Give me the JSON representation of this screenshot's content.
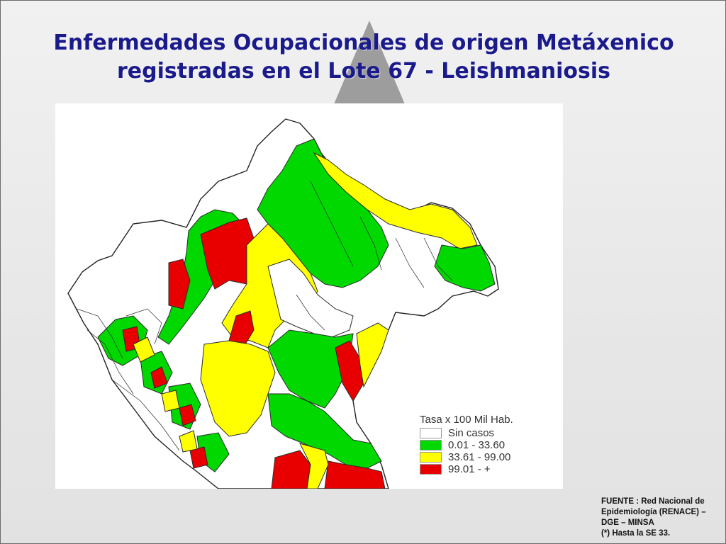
{
  "slide": {
    "title_line1": "Enfermedades Ocupacionales de origen Metáxenico",
    "title_line2": "registradas en el Lote 67 - Leishmaniosis"
  },
  "map": {
    "legend": {
      "title": "Tasa x 100 Mil Hab.",
      "items": [
        {
          "label": "Sin casos",
          "color": "#ffffff"
        },
        {
          "label": "0.01 - 33.60",
          "color": "#00d800"
        },
        {
          "label": "33.61 - 99.00",
          "color": "#ffff00"
        },
        {
          "label": "99.01 - +",
          "color": "#e80000"
        }
      ]
    }
  },
  "source": {
    "line1": "FUENTE : Red Nacional de",
    "line2": "Epidemiología (RENACE) –",
    "line3": "DGE – MINSA",
    "line4": "(*) Hasta la SE 33."
  },
  "colors": {
    "title": "#1a1a8c",
    "sin_casos": "#ffffff",
    "low": "#00d800",
    "mid": "#ffff00",
    "high": "#e80000",
    "border": "#222222"
  }
}
